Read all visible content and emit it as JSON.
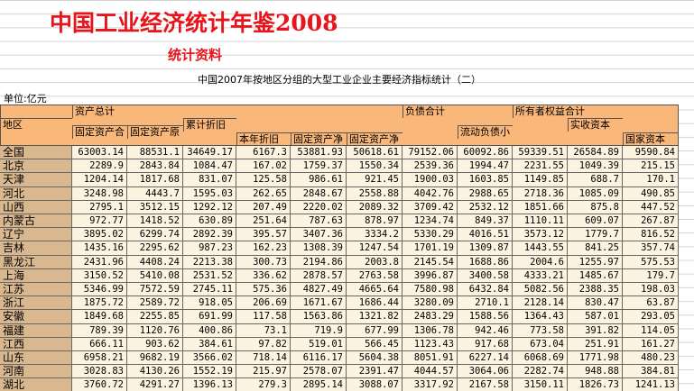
{
  "header": {
    "title": "中国工业经济统计年鉴2008",
    "section": "统计资料",
    "table_title": "中国2007年按地区分组的大型工业企业主要经济指标统计（二）",
    "unit": "单位:亿元"
  },
  "table": {
    "column_headers": [
      "资产总计",
      "负债合计",
      "所有者权益合计",
      "地区",
      "固定资产合",
      "固定资产原",
      "累计折旧",
      "实收资本",
      "本年折旧",
      "固定资产净",
      "固定资产净",
      "流动负债小",
      "国家资本"
    ],
    "rows": [
      [
        "全国",
        "63003.14",
        "88531.1",
        "34649.17",
        "6167.3",
        "53881.93",
        "50618.61",
        "79152.06",
        "60092.86",
        "59339.51",
        "26584.89",
        "9590.84"
      ],
      [
        "北京",
        "2289.9",
        "2843.84",
        "1084.47",
        "167.02",
        "1759.37",
        "1550.34",
        "2539.36",
        "1994.47",
        "2231.55",
        "1049.39",
        "215.15"
      ],
      [
        "天津",
        "1204.14",
        "1817.68",
        "831.07",
        "125.58",
        "986.61",
        "921.45",
        "1900.03",
        "1603.85",
        "1149.85",
        "688.7",
        "170.1"
      ],
      [
        "河北",
        "3248.98",
        "4443.7",
        "1595.03",
        "262.65",
        "2848.67",
        "2558.88",
        "4042.76",
        "2988.65",
        "2718.36",
        "1085.09",
        "490.85"
      ],
      [
        "山西",
        "2795.1",
        "3512.15",
        "1292.12",
        "207.49",
        "2220.02",
        "2089.32",
        "3709.42",
        "2532.12",
        "1851.66",
        "875.8",
        "447.52"
      ],
      [
        "内蒙古",
        "972.77",
        "1418.52",
        "630.89",
        "251.64",
        "787.63",
        "878.97",
        "1234.74",
        "849.37",
        "1110.11",
        "609.07",
        "267.87"
      ],
      [
        "辽宁",
        "3895.02",
        "6299.74",
        "2892.39",
        "395.57",
        "3407.36",
        "3334.2",
        "5330.29",
        "4016.51",
        "3573.12",
        "1779.7",
        "816.52"
      ],
      [
        "吉林",
        "1435.16",
        "2295.62",
        "987.23",
        "162.23",
        "1308.39",
        "1247.54",
        "1701.19",
        "1309.87",
        "1443.55",
        "841.25",
        "357.74"
      ],
      [
        "黑龙江",
        "2431.96",
        "4408.24",
        "2213.38",
        "300.73",
        "2194.86",
        "2003.8",
        "2145.54",
        "1688.86",
        "2004.6",
        "1255.97",
        "575.53"
      ],
      [
        "上海",
        "3150.52",
        "5410.08",
        "2531.52",
        "336.62",
        "2878.57",
        "2763.58",
        "3996.87",
        "3400.58",
        "4333.21",
        "1485.67",
        "179.7"
      ],
      [
        "江苏",
        "5346.99",
        "7572.59",
        "2745.11",
        "575.36",
        "4827.49",
        "4665.64",
        "7580.98",
        "6432.84",
        "5082.56",
        "2388.35",
        "198.03"
      ],
      [
        "浙江",
        "1875.72",
        "2589.72",
        "918.05",
        "206.69",
        "1671.67",
        "1686.44",
        "3280.09",
        "2710.1",
        "2128.14",
        "830.47",
        "63.87"
      ],
      [
        "安徽",
        "1849.68",
        "2255.85",
        "691.99",
        "117.58",
        "1563.86",
        "1321.82",
        "2483.29",
        "1588.56",
        "1364.43",
        "587.01",
        "293.05"
      ],
      [
        "福建",
        "789.39",
        "1120.76",
        "400.86",
        "73.1",
        "719.9",
        "677.99",
        "1306.78",
        "942.46",
        "773.58",
        "391.82",
        "114.05"
      ],
      [
        "江西",
        "666.11",
        "903.62",
        "384.61",
        "97.82",
        "519.01",
        "566.45",
        "1123.43",
        "917.68",
        "673.04",
        "251.91",
        "161.27"
      ],
      [
        "山东",
        "6958.21",
        "9682.19",
        "3566.02",
        "718.14",
        "6116.17",
        "5604.38",
        "8051.91",
        "6227.14",
        "6068.69",
        "1771.98",
        "480.23"
      ],
      [
        "河南",
        "3028.83",
        "4130.26",
        "1552.19",
        "215.97",
        "2578.07",
        "2391.47",
        "4044.57",
        "3064.06",
        "2282.74",
        "948.88",
        "384.81"
      ],
      [
        "湖北",
        "3760.72",
        "4291.27",
        "1396.13",
        "279.3",
        "2895.14",
        "3088.07",
        "3317.92",
        "2167.58",
        "3150.11",
        "1826.73",
        "1241.13"
      ]
    ]
  }
}
